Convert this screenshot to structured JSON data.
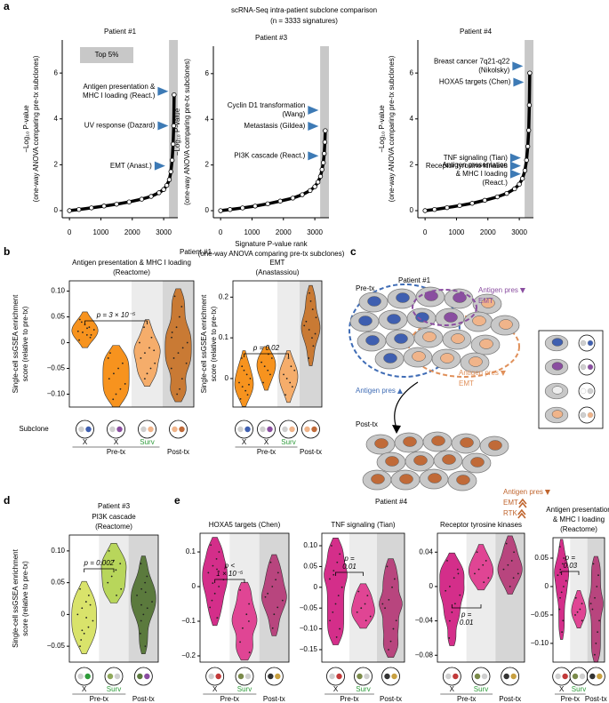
{
  "figure": {
    "letters": [
      "a",
      "b",
      "c",
      "d",
      "e"
    ],
    "a_title": [
      "scRNA-Seq intra-patient subclone comparison",
      "(n = 3333 signatures)"
    ],
    "b_patient": "Patient #1",
    "b_subclone": "Subclone",
    "d_patient": "Patient #3",
    "e_patient": "Patient #4"
  },
  "diagram": {
    "patient": "Patient #1",
    "pre": "Pre-tx",
    "post": "Post-tx",
    "notes": [
      {
        "text": [
          "Antigen pres",
          "EMT"
        ],
        "color": "#8a4ea0"
      },
      {
        "text": [
          "Antigen pres"
        ],
        "color": "#3f6cb5"
      },
      {
        "text": [
          "Antigen pres",
          "EMT"
        ],
        "color": "#e0905a"
      },
      {
        "text": [
          "Antigen pres",
          "EMT",
          "RTK"
        ],
        "color": "#c0652e"
      }
    ]
  },
  "chart_data": [
    {
      "type": "line",
      "title": "Patient #1",
      "ylabel": [
        "−Log₁₀ P-value",
        "(one-way ANOVA comparing pre-tx subclones)"
      ],
      "x": [
        0,
        300,
        700,
        1100,
        1500,
        1900,
        2300,
        2600,
        2850,
        3000,
        3100,
        3180,
        3230,
        3270,
        3300,
        3320,
        3333
      ],
      "values": [
        0,
        0.05,
        0.12,
        0.2,
        0.28,
        0.38,
        0.5,
        0.62,
        0.78,
        0.92,
        1.1,
        1.35,
        1.7,
        2.2,
        2.9,
        3.7,
        5.05
      ],
      "color": "#000000",
      "xlim": [
        -230,
        3450
      ],
      "ylim": [
        -0.31,
        7.44
      ],
      "xticks": [
        0,
        1000,
        2000,
        3000
      ],
      "yticks": [
        0,
        2,
        4,
        6
      ],
      "band": [
        3170,
        3450
      ],
      "band_color": "#c8c8c8",
      "legend": "Top 5%",
      "annotation_color": "#3d7ab5",
      "annotations": [
        {
          "text": [
            "Antigen presentation &",
            "MHC I loading (React.)"
          ],
          "x": 3150,
          "y": 5.2
        },
        {
          "text": [
            "UV response (Dazard)"
          ],
          "x": 3150,
          "y": 3.7
        },
        {
          "text": [
            "EMT (Anast.)"
          ],
          "x": 3050,
          "y": 1.95
        }
      ]
    },
    {
      "type": "line",
      "title": "Patient #3",
      "ylabel": [
        "−Log₁₀ P-value",
        "(one-way ANOVA comparing pre-tx subclones)"
      ],
      "xlabel": [
        "Signature P-value rank",
        "(one-way ANOVA comparing pre-tx subclones)"
      ],
      "x": [
        0,
        300,
        700,
        1100,
        1500,
        1900,
        2300,
        2600,
        2850,
        3000,
        3100,
        3180,
        3230,
        3270,
        3300,
        3320,
        3333
      ],
      "values": [
        0,
        0.05,
        0.12,
        0.2,
        0.3,
        0.42,
        0.55,
        0.7,
        0.88,
        1.05,
        1.25,
        1.5,
        1.8,
        2.1,
        2.5,
        3.0,
        3.5
      ],
      "color": "#000000",
      "xlim": [
        -230,
        3450
      ],
      "ylim": [
        -0.31,
        7.2
      ],
      "xticks": [
        0,
        1000,
        2000,
        3000
      ],
      "yticks": [
        0,
        2,
        4,
        6
      ],
      "band": [
        3170,
        3450
      ],
      "band_color": "#c8c8c8",
      "annotation_color": "#3d7ab5",
      "annotations": [
        {
          "text": [
            "Cyclin D1 transformation",
            "(Wang)"
          ],
          "x": 3120,
          "y": 4.4
        },
        {
          "text": [
            "Metastasis (Gildea)"
          ],
          "x": 3120,
          "y": 3.7
        },
        {
          "text": [
            "PI3K cascade (React.)"
          ],
          "x": 3120,
          "y": 2.4
        }
      ]
    },
    {
      "type": "line",
      "title": "Patient #4",
      "ylabel": [
        "−Log₁₀ P-value",
        "(one-way ANOVA comparing pre-tx subclones)"
      ],
      "x": [
        0,
        300,
        700,
        1100,
        1500,
        1900,
        2300,
        2600,
        2850,
        3000,
        3100,
        3180,
        3230,
        3270,
        3300,
        3320,
        3333
      ],
      "values": [
        0,
        0.05,
        0.13,
        0.22,
        0.32,
        0.45,
        0.6,
        0.75,
        0.95,
        1.15,
        1.4,
        1.75,
        2.2,
        2.8,
        3.5,
        4.6,
        6.0
      ],
      "color": "#000000",
      "xlim": [
        -230,
        3450
      ],
      "ylim": [
        -0.31,
        7.44
      ],
      "xticks": [
        0,
        1000,
        2000,
        3000
      ],
      "yticks": [
        0,
        2,
        4,
        6
      ],
      "band": [
        3170,
        3450
      ],
      "band_color": "#c8c8c8",
      "annotation_color": "#3d7ab5",
      "annotations": [
        {
          "text": [
            "Breast cancer 7q21-q22",
            "(Nikolsky)"
          ],
          "x": 3120,
          "y": 6.3
        },
        {
          "text": [
            "HOXA5 targets (Chen)"
          ],
          "x": 3150,
          "y": 5.6
        },
        {
          "text": [
            "TNF signaling (Tian)"
          ],
          "x": 3050,
          "y": 2.3
        },
        {
          "text": [
            "Receptor tyrosine kinases"
          ],
          "x": 3050,
          "y": 1.95
        },
        {
          "text": [
            "Antigen presentation",
            "& MHC I loading",
            "(React.)"
          ],
          "x": 3050,
          "y": 1.6
        }
      ]
    },
    {
      "type": "violin",
      "title": [
        "Antigen presentation & MHC I loading",
        "(Reactome)"
      ],
      "ylabel": [
        "Single-cell ssGSEA enrichment",
        "score (relative to pre-tx)"
      ],
      "ylim": [
        -0.125,
        0.12
      ],
      "yticks": [
        {
          "value": -0.1,
          "label": "−0.10"
        },
        {
          "value": -0.05,
          "label": "−0.05"
        },
        0,
        0.05,
        {
          "value": 0.1,
          "label": "0.10"
        }
      ],
      "categories": [
        "X",
        "X",
        "Surv",
        null
      ],
      "category_colors": [
        "#000000",
        "#000000",
        "#2e9b3a",
        null
      ],
      "periods": [
        "Pre-tx",
        "Post-tx"
      ],
      "shades": [
        "#ffffff",
        "#ffffff",
        "#ececec",
        "#d6d6d6"
      ],
      "annotation": [
        "p = 3 × 10⁻⁵"
      ],
      "series": [
        {
          "color": "#f7931e",
          "values": [
            0.005,
            0.01,
            0.015,
            0.02,
            0.022,
            0.025,
            0.03,
            0.035,
            0.04,
            0.045,
            0.015,
            0.028
          ]
        },
        {
          "color": "#f7931e",
          "values": [
            -0.02,
            -0.04,
            -0.05,
            -0.06,
            -0.07,
            -0.08,
            -0.09,
            -0.1,
            -0.11,
            -0.03
          ]
        },
        {
          "color": "#f5ad6b",
          "values": [
            0.03,
            0.01,
            -0.01,
            -0.02,
            -0.03,
            -0.04,
            -0.05,
            -0.06,
            -0.07,
            0,
            -0.015
          ]
        },
        {
          "color": "#c97a34",
          "values": [
            0.09,
            0.07,
            0.05,
            0.03,
            0.01,
            0,
            -0.01,
            -0.02,
            -0.03,
            -0.05,
            -0.07,
            -0.09,
            -0.1,
            0.02,
            -0.04
          ]
        }
      ]
    },
    {
      "type": "violin",
      "title": [
        "EMT",
        "(Anastassiou)"
      ],
      "ylabel": [
        "Single-cell ssGSEA enrichment",
        "score (relative to pre-tx)"
      ],
      "ylim": [
        -0.07,
        0.24
      ],
      "yticks": [
        0,
        0.1,
        0.2
      ],
      "categories": [
        "X",
        "X",
        "Surv",
        null
      ],
      "category_colors": [
        "#000000",
        "#000000",
        "#2e9b3a",
        null
      ],
      "periods": [
        "Pre-tx",
        "Post-tx"
      ],
      "shades": [
        "#ffffff",
        "#ffffff",
        "#ececec",
        "#d6d6d6"
      ],
      "annotation": [
        "p = 0.02"
      ],
      "series": [
        {
          "color": "#f7931e",
          "values": [
            -0.05,
            -0.04,
            -0.03,
            -0.02,
            -0.01,
            0,
            0.01,
            0.02,
            0.03,
            0.05,
            -0.015
          ]
        },
        {
          "color": "#f7931e",
          "values": [
            -0.01,
            0.01,
            0.02,
            0.03,
            0.04,
            0.05,
            0.06
          ]
        },
        {
          "color": "#f5ad6b",
          "values": [
            -0.04,
            -0.02,
            -0.01,
            0,
            0.01,
            0.02,
            0.03,
            0.05
          ]
        },
        {
          "color": "#c97a34",
          "values": [
            0.05,
            0.08,
            0.1,
            0.12,
            0.14,
            0.15,
            0.17,
            0.19,
            0.21,
            0.13,
            0.11
          ]
        }
      ]
    },
    {
      "type": "violin",
      "title": [
        "PI3K cascade",
        "(Reactome)"
      ],
      "ylabel": [
        "Single-cell ssGSEA enrichment",
        "score (relative to pre-tx)"
      ],
      "ylim": [
        -0.075,
        0.125
      ],
      "yticks": [
        {
          "value": -0.05,
          "label": "−0.05"
        },
        0,
        0.05,
        {
          "value": 0.1,
          "label": "0.10"
        }
      ],
      "categories": [
        "X",
        "Surv",
        null
      ],
      "category_colors": [
        "#000000",
        "#2e9b3a",
        null
      ],
      "periods": [
        "Pre-tx",
        "Post-tx"
      ],
      "shades": [
        "#ffffff",
        "#ececec",
        "#d6d6d6"
      ],
      "annotation": [
        "p = 0.002"
      ],
      "series": [
        {
          "color": "#d9e36b",
          "values": [
            0.04,
            0.03,
            0.02,
            0.01,
            0,
            -0.01,
            -0.02,
            -0.03,
            -0.04,
            -0.05,
            0.015,
            -0.005,
            -0.025
          ]
        },
        {
          "color": "#b8d65b",
          "values": [
            0.1,
            0.08,
            0.07,
            0.06,
            0.05,
            0.04,
            0.03,
            0.085
          ]
        },
        {
          "color": "#5b7a3d",
          "values": [
            0.08,
            0.06,
            0.05,
            0.04,
            0.03,
            0.02,
            0.01,
            0,
            -0.01,
            -0.03,
            -0.05,
            0.035,
            0.015
          ]
        }
      ]
    },
    {
      "type": "violin",
      "title": [
        "HOXA5 targets (Chen)"
      ],
      "ylim": [
        -0.218,
        0.154
      ],
      "yticks": [
        {
          "value": -0.2,
          "label": "−0.2"
        },
        {
          "value": -0.1,
          "label": "−0.1"
        },
        0,
        0.1
      ],
      "categories": [
        "X",
        "Surv",
        null
      ],
      "category_colors": [
        "#000000",
        "#2e9b3a",
        null
      ],
      "periods": [
        "Pre-tx",
        "Post-tx"
      ],
      "shades": [
        "#ffffff",
        "#ececec",
        "#d6d6d6"
      ],
      "annotation": [
        "p <",
        "1 × 10⁻⁵"
      ],
      "series": [
        {
          "color": "#d42e8a",
          "values": [
            0.12,
            0.1,
            0.08,
            0.06,
            0.04,
            0.02,
            0,
            -0.02,
            -0.04,
            -0.06,
            -0.09,
            0.05,
            0.01
          ]
        },
        {
          "color": "#e04594",
          "values": [
            -0.01,
            -0.05,
            -0.08,
            -0.12,
            -0.16,
            -0.19,
            -0.1
          ]
        },
        {
          "color": "#b8457e",
          "values": [
            0.07,
            0.04,
            0.02,
            0,
            -0.02,
            -0.04,
            -0.06,
            -0.08,
            -0.12,
            -0.03
          ]
        }
      ]
    },
    {
      "type": "violin",
      "title": [
        "TNF signaling (Tian)"
      ],
      "ylim": [
        -0.18,
        0.13
      ],
      "yticks": [
        {
          "value": -0.15,
          "label": "−0.15"
        },
        {
          "value": -0.1,
          "label": "−0.10"
        },
        {
          "value": -0.05,
          "label": "−0.05"
        },
        0,
        0.05,
        {
          "value": 0.1,
          "label": "0.10"
        }
      ],
      "categories": [
        "X",
        "Surv",
        null
      ],
      "category_colors": [
        "#000000",
        "#2e9b3a",
        null
      ],
      "periods": [
        "Pre-tx",
        "Post-tx"
      ],
      "shades": [
        "#ffffff",
        "#ececec",
        "#d6d6d6"
      ],
      "annotation": [
        "p =",
        "0.01"
      ],
      "series": [
        {
          "color": "#d42e8a",
          "values": [
            0.1,
            0.08,
            0.06,
            0.04,
            0.02,
            0,
            -0.02,
            -0.04,
            -0.06,
            -0.08,
            -0.1,
            -0.12,
            0.03
          ]
        },
        {
          "color": "#e04594",
          "values": [
            -0.01,
            -0.02,
            -0.04,
            -0.05,
            -0.06,
            -0.07,
            -0.08
          ]
        },
        {
          "color": "#b8457e",
          "values": [
            0.05,
            0.02,
            0,
            -0.03,
            -0.05,
            -0.08,
            -0.1,
            -0.13,
            -0.15,
            -0.04
          ]
        }
      ]
    },
    {
      "type": "violin",
      "title": [
        "Receptor tyrosine kinases"
      ],
      "ylim": [
        -0.088,
        0.062
      ],
      "yticks": [
        {
          "value": -0.08,
          "label": "−0.08"
        },
        {
          "value": -0.04,
          "label": "−0.04"
        },
        0,
        0.04
      ],
      "categories": [
        "X",
        "Surv",
        null
      ],
      "category_colors": [
        "#000000",
        "#2e9b3a",
        null
      ],
      "periods": [
        "Pre-tx",
        "Post-tx"
      ],
      "shades": [
        "#ffffff",
        "#ececec",
        "#d6d6d6"
      ],
      "annotation": [
        "p =",
        "0.01"
      ],
      "series": [
        {
          "color": "#d42e8a",
          "values": [
            0.03,
            0.02,
            0.01,
            0,
            -0.005,
            -0.01,
            -0.02,
            -0.03,
            -0.04,
            -0.06,
            0.015
          ]
        },
        {
          "color": "#e04594",
          "values": [
            0.04,
            0.03,
            0.025,
            0.02,
            0.015,
            0.01,
            0.005
          ]
        },
        {
          "color": "#b8457e",
          "values": [
            0.05,
            0.04,
            0.03,
            0.025,
            0.02,
            0.015,
            0.01,
            0
          ]
        }
      ]
    },
    {
      "type": "violin",
      "title": [
        "Antigen presentation",
        "& MHC I loading",
        "(Reactome)"
      ],
      "ylim": [
        -0.133,
        0.086
      ],
      "yticks": [
        {
          "value": -0.1,
          "label": "−0.10"
        },
        {
          "value": -0.05,
          "label": "−0.05"
        },
        0,
        0.05
      ],
      "categories": [
        "X",
        "Surv",
        null
      ],
      "category_colors": [
        "#000000",
        "#2e9b3a",
        null
      ],
      "periods": [
        "Pre-tx",
        "Post-tx"
      ],
      "shades": [
        "#ffffff",
        "#ececec",
        "#d6d6d6"
      ],
      "annotation": [
        "p =",
        "0.03"
      ],
      "series": [
        {
          "color": "#d42e8a",
          "values": [
            0.07,
            0.05,
            0.04,
            0.03,
            0.02,
            0.01,
            0,
            -0.01,
            -0.02,
            -0.04,
            -0.06,
            -0.08,
            0.025
          ]
        },
        {
          "color": "#e04594",
          "values": [
            -0.02,
            -0.03,
            -0.04,
            -0.045,
            -0.05,
            -0.06
          ]
        },
        {
          "color": "#b8457e",
          "values": [
            0.04,
            0.02,
            0,
            -0.02,
            -0.04,
            -0.06,
            -0.08,
            -0.1,
            -0.12,
            -0.03
          ]
        }
      ]
    }
  ]
}
